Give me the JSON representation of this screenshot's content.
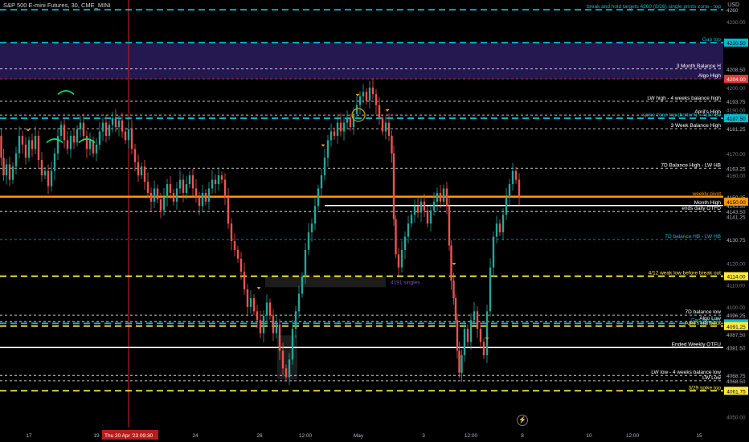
{
  "header": {
    "symbol": "S&P 500 E-mini Futures, 30, CME_MINI",
    "currency": "USD"
  },
  "crosshair": {
    "time_label": "Thu 20 Apr '23",
    "time_value": "09:30"
  },
  "colors": {
    "background": "#000000",
    "up": "#26a69a",
    "down": "#ef5350",
    "cyan": "#00bcd4",
    "yellow": "#ffeb3b",
    "orange": "#ff9800",
    "white": "#ffffff",
    "purple_zone": "#2b1b5e",
    "red_line": "#e53935",
    "crosshair": "#b71c1c"
  },
  "chart_data": {
    "type": "candlestick",
    "y_range": [
      4045,
      4237
    ],
    "x_ticks": [
      "17",
      "19",
      "24",
      "26",
      "12:00",
      "May",
      "3",
      "12:00",
      "8",
      "10",
      "12:00",
      "15"
    ],
    "y_ticks": [
      "4230.00",
      "4200.00",
      "4190.00",
      "4170.00",
      "4160.00",
      "4120.00",
      "4110.00",
      "4100.00",
      "4050.00"
    ],
    "price_path": [
      [
        0,
        4178
      ],
      [
        3,
        4168
      ],
      [
        6,
        4160
      ],
      [
        10,
        4165
      ],
      [
        14,
        4158
      ],
      [
        18,
        4164
      ],
      [
        22,
        4170
      ],
      [
        26,
        4178
      ],
      [
        30,
        4174
      ],
      [
        34,
        4168
      ],
      [
        38,
        4176
      ],
      [
        42,
        4172
      ],
      [
        46,
        4178
      ],
      [
        50,
        4167
      ],
      [
        54,
        4160
      ],
      [
        58,
        4162
      ],
      [
        62,
        4155
      ],
      [
        66,
        4162
      ],
      [
        70,
        4170
      ],
      [
        74,
        4178
      ],
      [
        78,
        4183
      ],
      [
        82,
        4176
      ],
      [
        86,
        4172
      ],
      [
        90,
        4178
      ],
      [
        94,
        4175
      ],
      [
        98,
        4181
      ],
      [
        102,
        4184
      ],
      [
        106,
        4178
      ],
      [
        110,
        4172
      ],
      [
        114,
        4176
      ],
      [
        118,
        4170
      ],
      [
        122,
        4174
      ],
      [
        126,
        4180
      ],
      [
        130,
        4184
      ],
      [
        134,
        4178
      ],
      [
        138,
        4183
      ],
      [
        142,
        4186
      ],
      [
        146,
        4182
      ],
      [
        150,
        4185
      ],
      [
        154,
        4180
      ],
      [
        158,
        4176
      ],
      [
        162,
        4181
      ],
      [
        166,
        4172
      ],
      [
        170,
        4166
      ],
      [
        174,
        4160
      ],
      [
        178,
        4164
      ],
      [
        182,
        4157
      ],
      [
        186,
        4152
      ],
      [
        190,
        4148
      ],
      [
        194,
        4154
      ],
      [
        198,
        4149
      ],
      [
        202,
        4144
      ],
      [
        206,
        4150
      ],
      [
        210,
        4156
      ],
      [
        214,
        4152
      ],
      [
        218,
        4148
      ],
      [
        222,
        4154
      ],
      [
        226,
        4158
      ],
      [
        230,
        4152
      ],
      [
        234,
        4156
      ],
      [
        238,
        4160
      ],
      [
        242,
        4154
      ],
      [
        246,
        4150
      ],
      [
        250,
        4146
      ],
      [
        254,
        4152
      ],
      [
        258,
        4148
      ],
      [
        262,
        4154
      ],
      [
        266,
        4158
      ],
      [
        270,
        4156
      ],
      [
        274,
        4160
      ],
      [
        278,
        4158
      ],
      [
        282,
        4150
      ],
      [
        286,
        4138
      ],
      [
        290,
        4130
      ],
      [
        294,
        4126
      ],
      [
        298,
        4122
      ],
      [
        302,
        4116
      ],
      [
        306,
        4108
      ],
      [
        310,
        4100
      ],
      [
        314,
        4104
      ],
      [
        318,
        4098
      ],
      [
        322,
        4094
      ],
      [
        326,
        4088
      ],
      [
        330,
        4096
      ],
      [
        334,
        4102
      ],
      [
        338,
        4096
      ],
      [
        342,
        4088
      ],
      [
        346,
        4092
      ],
      [
        350,
        4080
      ],
      [
        354,
        4072
      ],
      [
        358,
        4068
      ],
      [
        362,
        4076
      ],
      [
        366,
        4090
      ],
      [
        370,
        4098
      ],
      [
        374,
        4106
      ],
      [
        378,
        4114
      ],
      [
        382,
        4126
      ],
      [
        386,
        4134
      ],
      [
        390,
        4138
      ],
      [
        394,
        4146
      ],
      [
        398,
        4154
      ],
      [
        402,
        4160
      ],
      [
        406,
        4168
      ],
      [
        410,
        4176
      ],
      [
        414,
        4180
      ],
      [
        418,
        4178
      ],
      [
        422,
        4184
      ],
      [
        426,
        4180
      ],
      [
        430,
        4184
      ],
      [
        434,
        4186
      ],
      [
        438,
        4182
      ],
      [
        442,
        4188
      ],
      [
        446,
        4192
      ],
      [
        450,
        4196
      ],
      [
        454,
        4198
      ],
      [
        458,
        4194
      ],
      [
        462,
        4200
      ],
      [
        466,
        4197
      ],
      [
        470,
        4192
      ],
      [
        474,
        4186
      ],
      [
        478,
        4180
      ],
      [
        482,
        4184
      ],
      [
        486,
        4178
      ],
      [
        489,
        4170
      ],
      [
        491,
        4140
      ],
      [
        494,
        4124
      ],
      [
        498,
        4118
      ],
      [
        502,
        4126
      ],
      [
        506,
        4132
      ],
      [
        510,
        4138
      ],
      [
        514,
        4142
      ],
      [
        518,
        4146
      ],
      [
        522,
        4143
      ],
      [
        526,
        4148
      ],
      [
        530,
        4144
      ],
      [
        534,
        4138
      ],
      [
        538,
        4144
      ],
      [
        542,
        4148
      ],
      [
        546,
        4152
      ],
      [
        550,
        4148
      ],
      [
        554,
        4154
      ],
      [
        558,
        4146
      ],
      [
        560,
        4128
      ],
      [
        563,
        4112
      ],
      [
        566,
        4104
      ],
      [
        568,
        4094
      ],
      [
        570,
        4080
      ],
      [
        573,
        4070
      ],
      [
        576,
        4078
      ],
      [
        580,
        4090
      ],
      [
        584,
        4084
      ],
      [
        588,
        4094
      ],
      [
        592,
        4098
      ],
      [
        596,
        4090
      ],
      [
        600,
        4084
      ],
      [
        604,
        4078
      ],
      [
        608,
        4098
      ],
      [
        612,
        4118
      ],
      [
        616,
        4132
      ],
      [
        620,
        4138
      ],
      [
        624,
        4134
      ],
      [
        628,
        4142
      ],
      [
        632,
        4150
      ],
      [
        636,
        4156
      ],
      [
        640,
        4162
      ],
      [
        644,
        4158
      ],
      [
        648,
        4150
      ]
    ],
    "levels": [
      {
        "label": "break and hold targets 4260 (8/26) single prints zone - top",
        "price": "4260",
        "value": 4235.5,
        "color": "cyan",
        "style": "dash",
        "badge": false
      },
      {
        "label": "Gap top",
        "price": "4220.50",
        "value": 4220.5,
        "color": "cyan",
        "style": "dash",
        "badge": true
      },
      {
        "label": "3 Month Balance H",
        "price": "4208.50",
        "value": 4208.5,
        "color": "white",
        "style": "dot",
        "badge": false
      },
      {
        "label": "Algo High",
        "price": "4204.00",
        "value": 4204.0,
        "color": "red_line",
        "style": "dot",
        "badge": true
      },
      {
        "label": "LW high - 4 weeks balance high",
        "price": "4193.75",
        "value": 4193.75,
        "color": "white",
        "style": "dot",
        "badge": false
      },
      {
        "label": "April's High",
        "price": "4187.50",
        "value": 4187.5,
        "color": "white",
        "style": "dot",
        "badge": false
      },
      {
        "label": "spike zone top (bottom) - 4187.50",
        "price": "4187.50",
        "value": 4186.0,
        "color": "cyan",
        "style": "dash",
        "badge": true
      },
      {
        "label": "3 Week Balance High",
        "price": "4181.25",
        "value": 4181.25,
        "color": "white",
        "style": "dot",
        "badge": false
      },
      {
        "label": "7D Balance High - LW HB",
        "price": "4163.25",
        "value": 4163.25,
        "color": "white",
        "style": "dot",
        "badge": false
      },
      {
        "label": "weekly pivot",
        "price": "4150.25",
        "value": 4150.25,
        "color": "orange",
        "style": "solid",
        "badge": false
      },
      {
        "label": "",
        "price": "4150.00",
        "value": 4148.0,
        "color": "orange",
        "style": "none",
        "badge": true
      },
      {
        "label": "Month High",
        "price": "4143.50",
        "value": 4146.2,
        "color": "white",
        "style": "solid",
        "badge": false
      },
      {
        "label": "ends daily OTFD",
        "price": "4143.50",
        "value": 4143.5,
        "color": "white",
        "style": "dot",
        "badge": false
      },
      {
        "label": "",
        "price": "4141.25",
        "value": 4141.25,
        "color": "white",
        "style": "none",
        "badge": false
      },
      {
        "label": "7D balance HB - LW HB",
        "price": "4130.75",
        "value": 4130.75,
        "color": "cyan",
        "style": "dot",
        "badge": false
      },
      {
        "label": "4/12 weak low before break out",
        "price": "4114.00",
        "value": 4114.0,
        "color": "yellow",
        "style": "dash",
        "badge": true
      },
      {
        "label": "7D balance low",
        "price": "4096.25",
        "value": 4096.25,
        "color": "white",
        "style": "dot",
        "badge": false
      },
      {
        "label": "Algo Low",
        "price": "4092.50",
        "value": 4093.3,
        "color": "white",
        "style": "dot",
        "badge": false
      },
      {
        "label": "Gap top 3/31",
        "price": "4092.50",
        "value": 4092.5,
        "color": "cyan",
        "style": "dash",
        "badge": true
      },
      {
        "label": "April's Halfback",
        "price": "4091.25",
        "value": 4091.25,
        "color": "yellow",
        "style": "dash",
        "badge": true
      },
      {
        "label": "",
        "price": "4087.50",
        "value": 4087.5,
        "color": "white",
        "style": "none",
        "badge": false
      },
      {
        "label": "Ended Weekly OTFU",
        "price": "4081.50",
        "value": 4081.5,
        "color": "white",
        "style": "solid",
        "badge": false
      },
      {
        "label": "LW low - 4 weeks balance low",
        "price": "4068.75",
        "value": 4068.75,
        "color": "white",
        "style": "dot",
        "badge": false
      },
      {
        "label": "LW Low",
        "price": "4068.50",
        "value": 4066.3,
        "color": "white",
        "style": "dot",
        "badge": false
      },
      {
        "label": "3/29 spike top",
        "price": "4061.75",
        "value": 4061.75,
        "color": "yellow",
        "style": "dash",
        "badge": true
      }
    ],
    "annotations": [
      "4191 singles"
    ]
  }
}
